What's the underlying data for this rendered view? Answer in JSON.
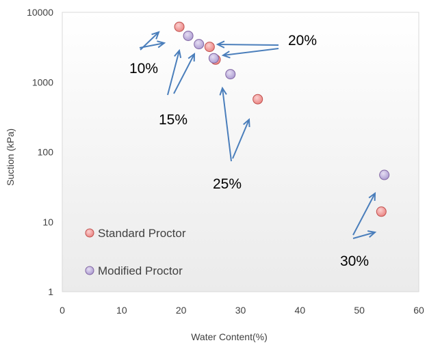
{
  "chart_data": {
    "type": "scatter",
    "title": "",
    "xlabel": "Water Content(%)",
    "ylabel": "Suction (kPa)",
    "xlim": [
      0,
      60
    ],
    "ylim": [
      1,
      10000
    ],
    "y_scale": "log",
    "x_ticks": [
      "0",
      "10",
      "20",
      "30",
      "40",
      "50",
      "60"
    ],
    "y_ticks": [
      "1",
      "10",
      "100",
      "1000",
      "10000"
    ],
    "grid": false,
    "legend_position": "lower-left inside plot",
    "series": [
      {
        "name": "Standard Proctor",
        "color": "#f08080",
        "points": [
          {
            "x": 19.7,
            "y": 6200
          },
          {
            "x": 24.8,
            "y": 3200
          },
          {
            "x": 25.8,
            "y": 2100
          },
          {
            "x": 32.9,
            "y": 570
          },
          {
            "x": 53.7,
            "y": 14
          }
        ]
      },
      {
        "name": "Modified Proctor",
        "color": "#b3a2d6",
        "points": [
          {
            "x": 21.2,
            "y": 4600
          },
          {
            "x": 23.0,
            "y": 3500
          },
          {
            "x": 25.5,
            "y": 2200
          },
          {
            "x": 28.3,
            "y": 1300
          },
          {
            "x": 54.2,
            "y": 47
          }
        ]
      }
    ],
    "annotations": [
      {
        "label": "10%"
      },
      {
        "label": "15%"
      },
      {
        "label": "20%"
      },
      {
        "label": "25%"
      },
      {
        "label": "30%"
      }
    ],
    "arrow_color": "#4a7ebb"
  }
}
